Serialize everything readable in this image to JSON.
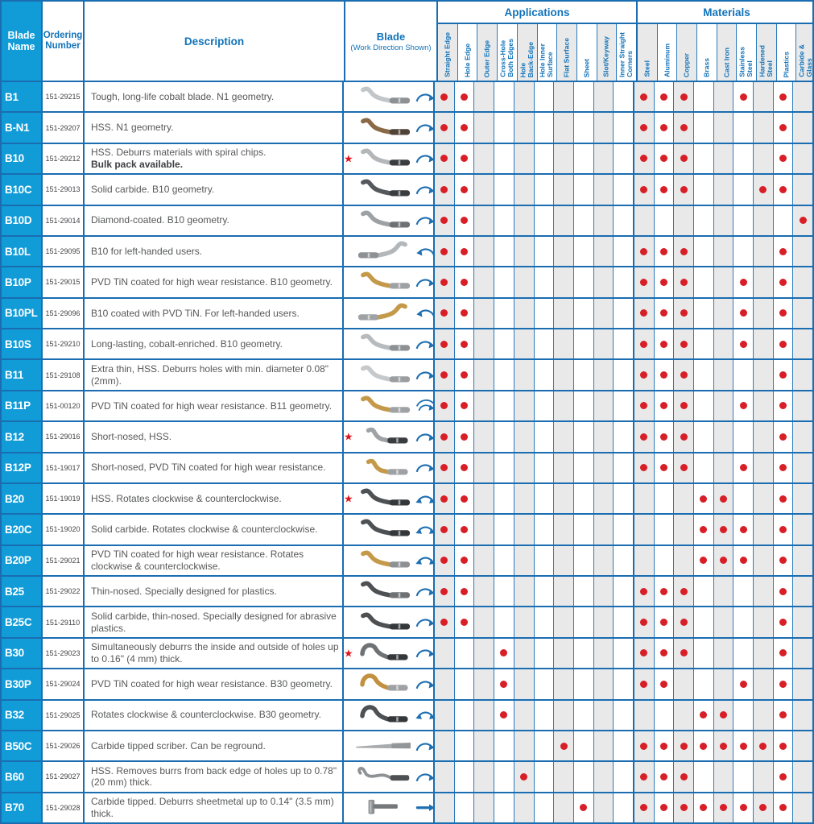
{
  "header": {
    "blade_name": "Blade Name",
    "ordering_number": "Ordering Number",
    "description": "Description",
    "blade": "Blade",
    "blade_sub": "(Work Direction Shown)",
    "applications": "Applications",
    "materials": "Materials"
  },
  "columns": {
    "applications": [
      "Straight Edge",
      "Hole Edge",
      "Outer Edge",
      "Cross-Hole\nBoth Edges",
      "Hole\nBack-Edge",
      "Hole Inner\nSurface",
      "Flat Surface",
      "Sheet",
      "Slot/Keyway",
      "Inner Straight\nCorners"
    ],
    "materials": [
      "Steel",
      "Aluminum",
      "Copper",
      "Brass",
      "Cast Iron",
      "Stainless\nSteel",
      "Hardened\nSteel",
      "Plastics",
      "Carbide &\nGlass"
    ]
  },
  "colors": {
    "accent_blue": "#1173ba",
    "grid_blue": "#1a6db1",
    "name_cell_bg": "#119bd7",
    "dot_red": "#d81e26",
    "star_red": "#e1131c",
    "shade_gray": "#e9e9e9",
    "arrow_blue": "#1e6fb2"
  },
  "rows": [
    {
      "name": "B1",
      "order": "151-29215",
      "desc": "Tough, long-life cobalt blade. N1 geometry.",
      "desc_bold": "",
      "star": false,
      "shape": "s",
      "mirror": false,
      "color": "#c3c6c9",
      "shank": "#8e9194",
      "arrow": "cw",
      "apps": [
        1,
        1,
        0,
        0,
        0,
        0,
        0,
        0,
        0,
        0
      ],
      "mats": [
        1,
        1,
        1,
        0,
        0,
        1,
        0,
        1,
        0
      ]
    },
    {
      "name": "B-N1",
      "order": "151-29207",
      "desc": "HSS. N1 geometry.",
      "desc_bold": "",
      "star": false,
      "shape": "s",
      "mirror": false,
      "color": "#8a6947",
      "shank": "#4f4236",
      "arrow": "cw",
      "apps": [
        1,
        1,
        0,
        0,
        0,
        0,
        0,
        0,
        0,
        0
      ],
      "mats": [
        1,
        1,
        1,
        0,
        0,
        0,
        0,
        1,
        0
      ]
    },
    {
      "name": "B10",
      "order": "151-29212",
      "desc": "HSS. Deburrs materials with spiral chips.",
      "desc_bold": "Bulk pack available.",
      "star": true,
      "shape": "s",
      "mirror": false,
      "color": "#b4b7ba",
      "shank": "#3a3d40",
      "arrow": "cw",
      "apps": [
        1,
        1,
        0,
        0,
        0,
        0,
        0,
        0,
        0,
        0
      ],
      "mats": [
        1,
        1,
        1,
        0,
        0,
        0,
        0,
        1,
        0
      ]
    },
    {
      "name": "B10C",
      "order": "151-29013",
      "desc": "Solid carbide. B10 geometry.",
      "desc_bold": "",
      "star": false,
      "shape": "s",
      "mirror": false,
      "color": "#55585c",
      "shank": "#3a3d40",
      "arrow": "cw",
      "apps": [
        1,
        1,
        0,
        0,
        0,
        0,
        0,
        0,
        0,
        0
      ],
      "mats": [
        1,
        1,
        1,
        0,
        0,
        0,
        1,
        1,
        0
      ]
    },
    {
      "name": "B10D",
      "order": "151-29014",
      "desc": "Diamond-coated. B10 geometry.",
      "desc_bold": "",
      "star": false,
      "shape": "s",
      "mirror": false,
      "color": "#9ea1a4",
      "shank": "#6e7174",
      "arrow": "cw",
      "apps": [
        1,
        1,
        0,
        0,
        0,
        0,
        0,
        0,
        0,
        0
      ],
      "mats": [
        0,
        0,
        0,
        0,
        0,
        0,
        0,
        0,
        1
      ]
    },
    {
      "name": "B10L",
      "order": "151-29095",
      "desc": "B10 for left-handed users.",
      "desc_bold": "",
      "star": false,
      "shape": "s",
      "mirror": true,
      "color": "#b4b7ba",
      "shank": "#8e9194",
      "arrow": "ccw",
      "apps": [
        1,
        1,
        0,
        0,
        0,
        0,
        0,
        0,
        0,
        0
      ],
      "mats": [
        1,
        1,
        1,
        0,
        0,
        0,
        0,
        1,
        0
      ]
    },
    {
      "name": "B10P",
      "order": "151-29015",
      "desc": "PVD TiN coated for high wear resistance. B10 geometry.",
      "desc_bold": "",
      "star": false,
      "shape": "s",
      "mirror": false,
      "color": "#c49a4a",
      "shank": "#9fa2a5",
      "arrow": "cw",
      "apps": [
        1,
        1,
        0,
        0,
        0,
        0,
        0,
        0,
        0,
        0
      ],
      "mats": [
        1,
        1,
        1,
        0,
        0,
        1,
        0,
        1,
        0
      ]
    },
    {
      "name": "B10PL",
      "order": "151-29096",
      "desc": "B10 coated with PVD TiN. For left-handed users.",
      "desc_bold": "",
      "star": false,
      "shape": "s",
      "mirror": true,
      "color": "#c49a4a",
      "shank": "#9fa2a5",
      "arrow": "ccw",
      "apps": [
        1,
        1,
        0,
        0,
        0,
        0,
        0,
        0,
        0,
        0
      ],
      "mats": [
        1,
        1,
        1,
        0,
        0,
        1,
        0,
        1,
        0
      ]
    },
    {
      "name": "B10S",
      "order": "151-29210",
      "desc": "Long-lasting, cobalt-enriched. B10 geometry.",
      "desc_bold": "",
      "star": false,
      "shape": "s",
      "mirror": false,
      "color": "#b8bbbe",
      "shank": "#8e9194",
      "arrow": "cw",
      "apps": [
        1,
        1,
        0,
        0,
        0,
        0,
        0,
        0,
        0,
        0
      ],
      "mats": [
        1,
        1,
        1,
        0,
        0,
        1,
        0,
        1,
        0
      ]
    },
    {
      "name": "B11",
      "order": "151-29108",
      "desc": "Extra thin, HSS. Deburrs holes with min. diameter 0.08\" (2mm).",
      "desc_bold": "",
      "star": false,
      "shape": "s",
      "mirror": false,
      "color": "#c6c9cc",
      "shank": "#9b9ea1",
      "arrow": "cw",
      "apps": [
        1,
        1,
        0,
        0,
        0,
        0,
        0,
        0,
        0,
        0
      ],
      "mats": [
        1,
        1,
        1,
        0,
        0,
        0,
        0,
        1,
        0
      ]
    },
    {
      "name": "B11P",
      "order": "151-00120",
      "desc": "PVD TiN coated for high wear resistance. B11 geometry.",
      "desc_bold": "",
      "star": false,
      "shape": "s",
      "mirror": false,
      "color": "#c49a4a",
      "shank": "#9fa2a5",
      "arrow": "cw2",
      "apps": [
        1,
        1,
        0,
        0,
        0,
        0,
        0,
        0,
        0,
        0
      ],
      "mats": [
        1,
        1,
        1,
        0,
        0,
        1,
        0,
        1,
        0
      ]
    },
    {
      "name": "B12",
      "order": "151-29016",
      "desc": "Short-nosed, HSS.",
      "desc_bold": "",
      "star": true,
      "shape": "short",
      "mirror": false,
      "color": "#9fa2a5",
      "shank": "#3a3d40",
      "arrow": "cw",
      "apps": [
        1,
        1,
        0,
        0,
        0,
        0,
        0,
        0,
        0,
        0
      ],
      "mats": [
        1,
        1,
        1,
        0,
        0,
        0,
        0,
        1,
        0
      ]
    },
    {
      "name": "B12P",
      "order": "151-19017",
      "desc": "Short-nosed, PVD TiN coated for high wear resistance.",
      "desc_bold": "",
      "star": false,
      "shape": "short",
      "mirror": false,
      "color": "#c49a4a",
      "shank": "#9fa2a5",
      "arrow": "cw",
      "apps": [
        1,
        1,
        0,
        0,
        0,
        0,
        0,
        0,
        0,
        0
      ],
      "mats": [
        1,
        1,
        1,
        0,
        0,
        1,
        0,
        1,
        0
      ]
    },
    {
      "name": "B20",
      "order": "151-19019",
      "desc": "HSS. Rotates clockwise & counterclockwise.",
      "desc_bold": "",
      "star": true,
      "shape": "s",
      "mirror": false,
      "color": "#4e5154",
      "shank": "#35383b",
      "arrow": "both",
      "apps": [
        1,
        1,
        0,
        0,
        0,
        0,
        0,
        0,
        0,
        0
      ],
      "mats": [
        0,
        0,
        0,
        1,
        1,
        0,
        0,
        1,
        0
      ]
    },
    {
      "name": "B20C",
      "order": "151-19020",
      "desc": "Solid carbide. Rotates clockwise & counterclockwise.",
      "desc_bold": "",
      "star": false,
      "shape": "s",
      "mirror": false,
      "color": "#4e5154",
      "shank": "#35383b",
      "arrow": "both",
      "apps": [
        1,
        1,
        0,
        0,
        0,
        0,
        0,
        0,
        0,
        0
      ],
      "mats": [
        0,
        0,
        0,
        1,
        1,
        1,
        0,
        1,
        0
      ]
    },
    {
      "name": "B20P",
      "order": "151-29021",
      "desc": "PVD TiN coated for high wear resistance. Rotates clockwise & counterclockwise.",
      "desc_bold": "",
      "star": false,
      "shape": "s",
      "mirror": false,
      "color": "#c49a4a",
      "shank": "#8e9194",
      "arrow": "both",
      "apps": [
        1,
        1,
        0,
        0,
        0,
        0,
        0,
        0,
        0,
        0
      ],
      "mats": [
        0,
        0,
        0,
        1,
        1,
        1,
        0,
        1,
        0
      ]
    },
    {
      "name": "B25",
      "order": "151-29022",
      "desc": "Thin-nosed. Specially designed for plastics.",
      "desc_bold": "",
      "star": false,
      "shape": "s",
      "mirror": false,
      "color": "#4e5154",
      "shank": "#6f7275",
      "arrow": "cw",
      "apps": [
        1,
        1,
        0,
        0,
        0,
        0,
        0,
        0,
        0,
        0
      ],
      "mats": [
        1,
        1,
        1,
        0,
        0,
        0,
        0,
        1,
        0
      ]
    },
    {
      "name": "B25C",
      "order": "151-29110",
      "desc": "Solid carbide, thin-nosed. Specially designed for abrasive plastics.",
      "desc_bold": "",
      "star": false,
      "shape": "s",
      "mirror": false,
      "color": "#4e5154",
      "shank": "#35383b",
      "arrow": "cw",
      "apps": [
        1,
        1,
        0,
        0,
        0,
        0,
        0,
        0,
        0,
        0
      ],
      "mats": [
        1,
        1,
        1,
        0,
        0,
        0,
        0,
        1,
        0
      ]
    },
    {
      "name": "B30",
      "order": "151-29023",
      "desc": "Simultaneously deburrs the inside and outside of holes up to 0.16\" (4 mm) thick.",
      "desc_bold": "",
      "star": true,
      "shape": "wavy",
      "mirror": false,
      "color": "#6f7275",
      "shank": "#35383b",
      "arrow": "cw",
      "apps": [
        0,
        0,
        0,
        1,
        0,
        0,
        0,
        0,
        0,
        0
      ],
      "mats": [
        1,
        1,
        1,
        0,
        0,
        0,
        0,
        1,
        0
      ]
    },
    {
      "name": "B30P",
      "order": "151-29024",
      "desc": "PVD TiN coated for high wear resistance. B30 geometry.",
      "desc_bold": "",
      "star": false,
      "shape": "wavy",
      "mirror": false,
      "color": "#c2913f",
      "shank": "#9fa2a5",
      "arrow": "cw",
      "apps": [
        0,
        0,
        0,
        1,
        0,
        0,
        0,
        0,
        0,
        0
      ],
      "mats": [
        1,
        1,
        0,
        0,
        0,
        1,
        0,
        1,
        0
      ]
    },
    {
      "name": "B32",
      "order": "151-29025",
      "desc": "Rotates clockwise & counterclockwise. B30 geometry.",
      "desc_bold": "",
      "star": false,
      "shape": "wavy",
      "mirror": false,
      "color": "#4e5154",
      "shank": "#35383b",
      "arrow": "both",
      "apps": [
        0,
        0,
        0,
        1,
        0,
        0,
        0,
        0,
        0,
        0
      ],
      "mats": [
        0,
        0,
        0,
        1,
        1,
        0,
        0,
        1,
        0
      ]
    },
    {
      "name": "B50C",
      "order": "151-29026",
      "desc": "Carbide tipped scriber. Can be reground.",
      "desc_bold": "",
      "star": false,
      "shape": "needle",
      "mirror": false,
      "color": "#a9acaf",
      "shank": "#7d8083",
      "arrow": "cw",
      "apps": [
        0,
        0,
        0,
        0,
        0,
        0,
        1,
        0,
        0,
        0
      ],
      "mats": [
        1,
        1,
        1,
        1,
        1,
        1,
        1,
        1,
        0
      ]
    },
    {
      "name": "B60",
      "order": "151-29027",
      "desc": "HSS. Removes burrs from back edge of holes up to 0.78\" (20 mm) thick.",
      "desc_bold": "",
      "star": false,
      "shape": "hook",
      "mirror": false,
      "color": "#8f9295",
      "shank": "#4e5154",
      "arrow": "cw",
      "apps": [
        0,
        0,
        0,
        0,
        1,
        0,
        0,
        0,
        0,
        0
      ],
      "mats": [
        1,
        1,
        1,
        0,
        0,
        0,
        0,
        1,
        0
      ]
    },
    {
      "name": "B70",
      "order": "151-29028",
      "desc": "Carbide tipped. Deburrs sheetmetal up to 0.14\" (3.5 mm) thick.",
      "desc_bold": "",
      "star": false,
      "shape": "t",
      "mirror": false,
      "color": "#8f9295",
      "shank": "#75787b",
      "arrow": "right",
      "apps": [
        0,
        0,
        0,
        0,
        0,
        0,
        0,
        1,
        0,
        0
      ],
      "mats": [
        1,
        1,
        1,
        1,
        1,
        1,
        1,
        1,
        0
      ]
    }
  ]
}
